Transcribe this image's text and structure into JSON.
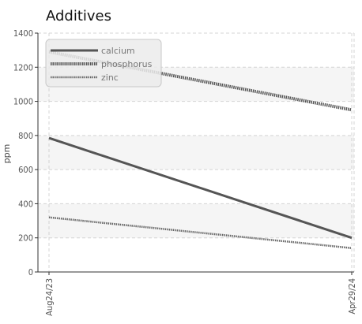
{
  "chart_data": {
    "type": "line",
    "title": "Additives",
    "ylabel": "ppm",
    "xlabel": "",
    "x": [
      "Aug24/23",
      "Apr29/24"
    ],
    "ylim": [
      0,
      1400
    ],
    "yticks": [
      0,
      200,
      400,
      600,
      800,
      1000,
      1200,
      1400
    ],
    "grid": true,
    "legend_position": "top-left",
    "series": [
      {
        "name": "calcium",
        "values": [
          785,
          200
        ],
        "color": "#555555",
        "style": "solid"
      },
      {
        "name": "phosphorus",
        "values": [
          1290,
          950
        ],
        "color": "#555555",
        "style": "dotted"
      },
      {
        "name": "zinc",
        "values": [
          320,
          140
        ],
        "color": "#666666",
        "style": "dotted-thin"
      }
    ]
  }
}
